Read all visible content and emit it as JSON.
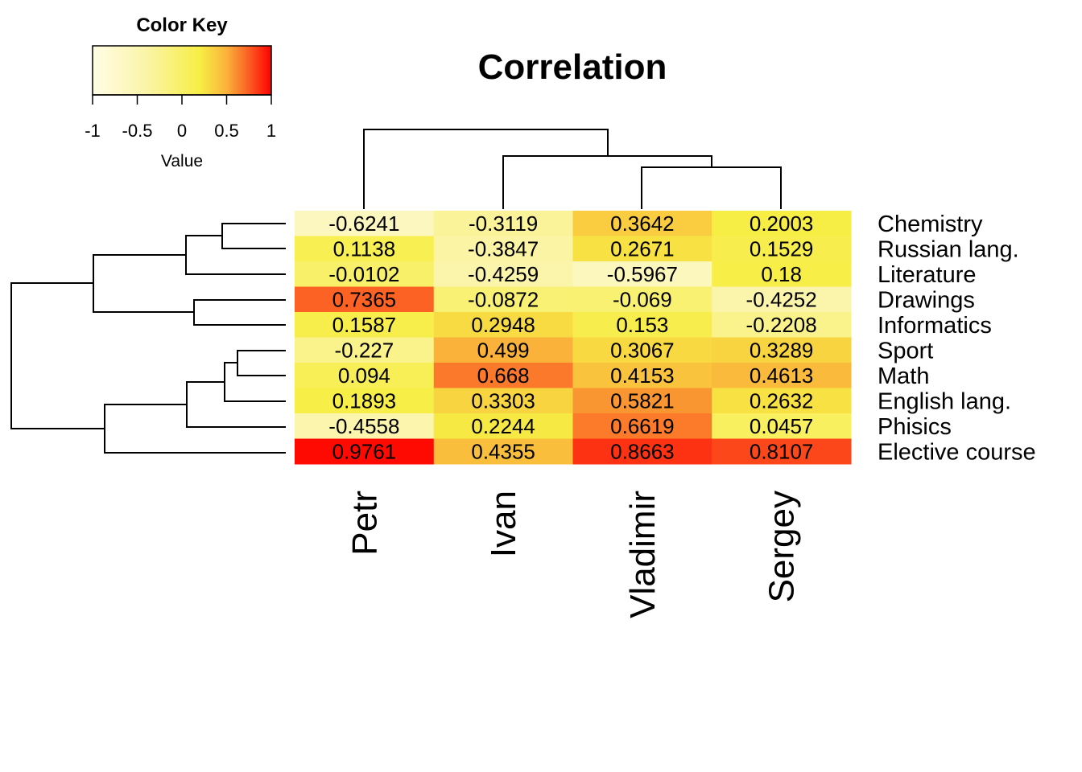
{
  "chart_data": {
    "type": "heatmap",
    "title": "Correlation",
    "columns": [
      "Petr",
      "Ivan",
      "Vladimir",
      "Sergey"
    ],
    "rows": [
      "Chemistry",
      "Russian lang.",
      "Literature",
      "Drawings",
      "Informatics",
      "Sport",
      "Math",
      "English lang.",
      "Phisics",
      "Elective course"
    ],
    "values": [
      [
        -0.6241,
        -0.3119,
        0.3642,
        0.2003
      ],
      [
        0.1138,
        -0.3847,
        0.2671,
        0.1529
      ],
      [
        -0.0102,
        -0.4259,
        -0.5967,
        0.18
      ],
      [
        0.7365,
        -0.0872,
        -0.069,
        -0.4252
      ],
      [
        0.1587,
        0.2948,
        0.153,
        -0.2208
      ],
      [
        -0.227,
        0.499,
        0.3067,
        0.3289
      ],
      [
        0.094,
        0.668,
        0.4153,
        0.4613
      ],
      [
        0.1893,
        0.3303,
        0.5821,
        0.2632
      ],
      [
        -0.4558,
        0.2244,
        0.6619,
        0.0457
      ],
      [
        0.9761,
        0.4355,
        0.8663,
        0.8107
      ]
    ],
    "cell_labels": [
      [
        "-0.6241",
        "-0.3119",
        "0.3642",
        "0.2003"
      ],
      [
        "0.1138",
        "-0.3847",
        "0.2671",
        "0.1529"
      ],
      [
        "-0.0102",
        "-0.4259",
        "-0.5967",
        "0.18"
      ],
      [
        "0.7365",
        "-0.0872",
        "-0.069",
        "-0.4252"
      ],
      [
        "0.1587",
        "0.2948",
        "0.153",
        "-0.2208"
      ],
      [
        "-0.227",
        "0.499",
        "0.3067",
        "0.3289"
      ],
      [
        "0.094",
        "0.668",
        "0.4153",
        "0.4613"
      ],
      [
        "0.1893",
        "0.3303",
        "0.5821",
        "0.2632"
      ],
      [
        "-0.4558",
        "0.2244",
        "0.6619",
        "0.0457"
      ],
      [
        "0.9761",
        "0.4355",
        "0.8663",
        "0.8107"
      ]
    ],
    "color_key": {
      "title": "Color Key",
      "xlabel": "Value",
      "range": [
        -1,
        1
      ],
      "ticks": [
        "-1",
        "-0.5",
        "0",
        "0.5",
        "1"
      ],
      "colors": [
        "#fffde6",
        "#fbf08a",
        "#f6ef3c",
        "#fa9e2a",
        "#fb2f10",
        "#ff0000"
      ]
    },
    "col_dendrogram": {
      "merges": [
        [
          3,
          4,
          1.0
        ],
        [
          2,
          "vs",
          1.3
        ],
        [
          1,
          "ivs",
          1.9
        ]
      ],
      "note": "Petr joins last; Ivan joins (Vladimir,Sergey)"
    },
    "row_dendrogram_order": [
      "Chemistry",
      "Russian lang.",
      "Literature",
      "Drawings",
      "Informatics",
      "Sport",
      "Math",
      "English lang.",
      "Phisics",
      "Elective course"
    ]
  }
}
